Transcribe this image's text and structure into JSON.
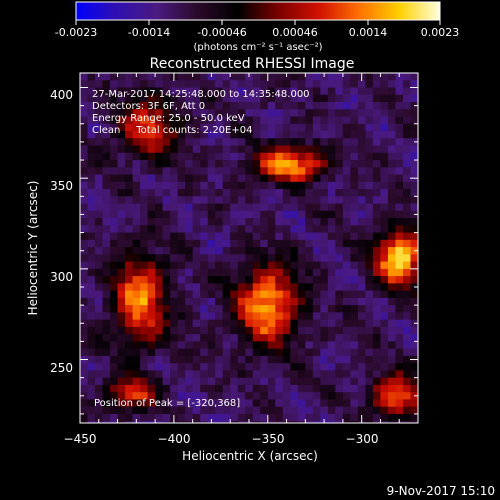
{
  "colorbar": {
    "tick_labels": [
      "-0.0023",
      "-0.0014",
      "-0.00046",
      "0.00046",
      "0.0014",
      "0.0023"
    ],
    "units": "(photons cm⁻² s⁻¹ asec⁻²)",
    "colors": [
      "#0000ff",
      "#3010b0",
      "#4a1a80",
      "#2a0a2a",
      "#000000",
      "#7a0000",
      "#d01000",
      "#ff7000",
      "#ffd000",
      "#ffffe0"
    ]
  },
  "footer_timestamp": "9-Nov-2017 15:10",
  "chart_data": {
    "type": "heatmap",
    "title": "Reconstructed RHESSI Image",
    "xlabel": "Heliocentric X (arcsec)",
    "ylabel": "Heliocentric Y (arcsec)",
    "xlim": [
      -450,
      -270
    ],
    "ylim": [
      215,
      408
    ],
    "x_ticks": [
      -450,
      -400,
      -350,
      -300
    ],
    "x_tick_labels": [
      "−450",
      "−400",
      "−350",
      "−300"
    ],
    "y_ticks": [
      250,
      300,
      350,
      400
    ],
    "y_tick_labels": [
      "250",
      "300",
      "350",
      "400"
    ],
    "annotations": [
      "27-Mar-2017 14:25:48.000 to 14:35:48.000",
      "Detectors: 3F 6F, Att 0",
      "Energy Range: 25.0 - 50.0 keV",
      "Clean     Total counts: 2.20E+04",
      "Position of Peak = [-320,368]"
    ],
    "peak": {
      "x": -320,
      "y": 368
    },
    "color_range": [
      -0.0023,
      0.0023
    ],
    "sources": [
      {
        "x": -282,
        "y": 308,
        "sx": 9,
        "sy": 11,
        "amp": 1.0
      },
      {
        "x": -340,
        "y": 360,
        "sx": 14,
        "sy": 7,
        "amp": 0.85
      },
      {
        "x": -352,
        "y": 282,
        "sx": 12,
        "sy": 15,
        "amp": 0.9
      },
      {
        "x": -420,
        "y": 285,
        "sx": 10,
        "sy": 18,
        "amp": 0.8
      },
      {
        "x": -415,
        "y": 380,
        "sx": 12,
        "sy": 12,
        "amp": 0.6
      },
      {
        "x": -283,
        "y": 232,
        "sx": 10,
        "sy": 8,
        "amp": 0.8
      },
      {
        "x": -425,
        "y": 233,
        "sx": 9,
        "sy": 6,
        "amp": 0.7
      }
    ]
  }
}
